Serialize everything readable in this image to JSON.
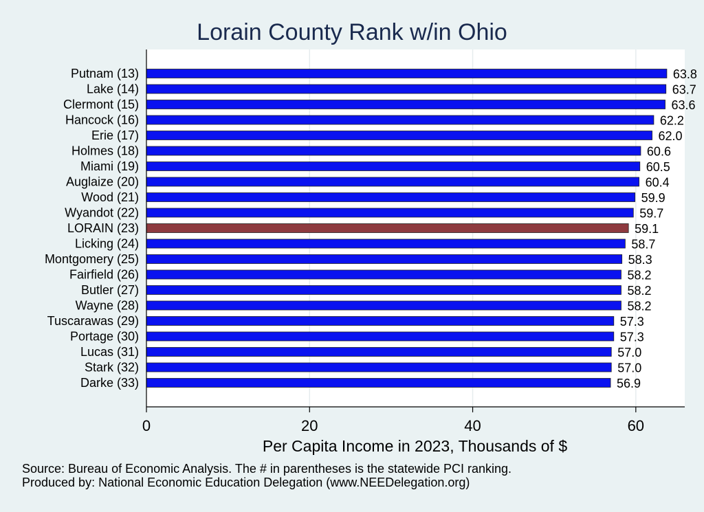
{
  "chart_data": {
    "type": "bar",
    "orientation": "horizontal",
    "title": "Lorain County Rank w/in Ohio",
    "xlabel": "Per Capita Income in 2023, Thousands of $",
    "ylabel": "",
    "xlim": [
      0,
      66
    ],
    "xticks": [
      0,
      20,
      40,
      60
    ],
    "grid": true,
    "legend": "none",
    "categories": [
      "Putnam (13)",
      "Lake (14)",
      "Clermont (15)",
      "Hancock (16)",
      "Erie (17)",
      "Holmes (18)",
      "Miami (19)",
      "Auglaize (20)",
      "Wood (21)",
      "Wyandot (22)",
      "LORAIN (23)",
      "Licking (24)",
      "Montgomery (25)",
      "Fairfield (26)",
      "Butler (27)",
      "Wayne (28)",
      "Tuscarawas (29)",
      "Portage (30)",
      "Lucas (31)",
      "Stark (32)",
      "Darke (33)"
    ],
    "values": [
      63.8,
      63.7,
      63.6,
      62.2,
      62.0,
      60.6,
      60.5,
      60.4,
      59.9,
      59.7,
      59.1,
      58.7,
      58.3,
      58.2,
      58.2,
      58.2,
      57.3,
      57.3,
      57.0,
      57.0,
      56.9
    ],
    "value_labels": [
      "63.8",
      "63.7",
      "63.6",
      "62.2",
      "62.0",
      "60.6",
      "60.5",
      "60.4",
      "59.9",
      "59.7",
      "59.1",
      "58.7",
      "58.3",
      "58.2",
      "58.2",
      "58.2",
      "57.3",
      "57.3",
      "57.0",
      "57.0",
      "56.9"
    ],
    "highlight_category": "LORAIN (23)",
    "colors": {
      "bar": "#0a12f0",
      "highlight": "#8e3a3f",
      "background": "#eaf2f3",
      "plot_bg": "#ffffff",
      "grid": "#e6ecee",
      "title": "#1a2a4e"
    }
  },
  "notes": {
    "source": "Source: Bureau of Economic Analysis. The # in parentheses is the statewide PCI ranking.",
    "produced_by": "Produced by: National Economic Education Delegation (www.NEEDelegation.org)"
  }
}
